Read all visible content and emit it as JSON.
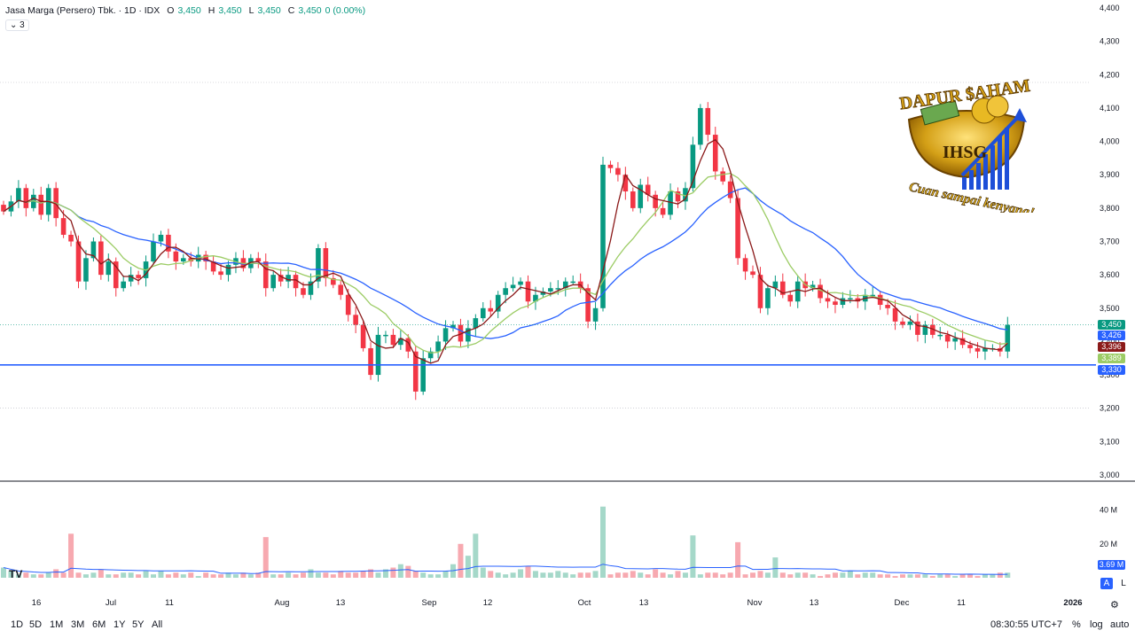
{
  "legend": {
    "symbol": "Jasa Marga (Persero) Tbk. · 1D · IDX",
    "o_label": "O",
    "o": "3,450",
    "h_label": "H",
    "h": "3,450",
    "l_label": "L",
    "l": "3,450",
    "c_label": "C",
    "c": "3,450",
    "change": "0 (0.00%)",
    "indicator_count": "3"
  },
  "price_axis_labels": [
    "4,400",
    "4,300",
    "4,200",
    "4,100",
    "4,000",
    "3,900",
    "3,800",
    "3,700",
    "3,600",
    "3,500",
    "3,400",
    "3,300",
    "3,200",
    "3,100",
    "3,000"
  ],
  "volume_axis_labels": [
    "40 M",
    "20 M"
  ],
  "time_axis_labels": [
    "16",
    "Jul",
    "11",
    "Aug",
    "13",
    "Sep",
    "12",
    "Oct",
    "13",
    "Nov",
    "13",
    "Dec",
    "11",
    "2026"
  ],
  "price_tags": [
    {
      "text": "3,450",
      "color": "#089981"
    },
    {
      "text": "3,426",
      "color": "#2962ff"
    },
    {
      "text": "3,396",
      "color": "#8b1a1a"
    },
    {
      "text": "3,389",
      "color": "#9ccc65"
    },
    {
      "text": "3,330",
      "color": "#2962ff"
    }
  ],
  "volume_tag": {
    "text": "3.69 M",
    "color": "#2962ff"
  },
  "ranges": [
    "1D",
    "5D",
    "1M",
    "3M",
    "6M",
    "1Y",
    "5Y",
    "All"
  ],
  "clock": "08:30:55 UTC+7",
  "controls": {
    "percent": "%",
    "log": "log",
    "auto": "auto",
    "a": "A",
    "l": "L"
  },
  "logo": {
    "top_text": "DAPUR $AHAM",
    "center_text": "IHSG",
    "bottom_text": "Cuan sampai kenyang!"
  },
  "tv_logo": "TV",
  "colors": {
    "up": "#089981",
    "down": "#f23645",
    "ma_blue": "#2962ff",
    "ma_dark": "#8b1a1a",
    "ma_green": "#9ccc65",
    "support": "#2962ff"
  },
  "chart_data": {
    "type": "candlestick",
    "title": "Jasa Marga (Persero) Tbk. · 1D · IDX",
    "ylim": [
      3000,
      4400
    ],
    "support_line": 3330,
    "close": [
      3790,
      3820,
      3860,
      3800,
      3840,
      3780,
      3860,
      3770,
      3720,
      3700,
      3580,
      3650,
      3700,
      3600,
      3640,
      3560,
      3580,
      3600,
      3590,
      3640,
      3700,
      3720,
      3670,
      3640,
      3650,
      3640,
      3660,
      3640,
      3610,
      3600,
      3630,
      3650,
      3620,
      3650,
      3640,
      3560,
      3600,
      3580,
      3600,
      3560,
      3540,
      3580,
      3680,
      3590,
      3570,
      3540,
      3480,
      3450,
      3380,
      3300,
      3420,
      3420,
      3390,
      3410,
      3370,
      3250,
      3350,
      3370,
      3400,
      3440,
      3450,
      3400,
      3440,
      3470,
      3500,
      3490,
      3540,
      3560,
      3570,
      3580,
      3520,
      3540,
      3550,
      3560,
      3560,
      3580,
      3580,
      3560,
      3460,
      3500,
      3930,
      3920,
      3900,
      3850,
      3800,
      3870,
      3840,
      3800,
      3780,
      3850,
      3820,
      3860,
      3990,
      4100,
      4020,
      3910,
      3880,
      3830,
      3650,
      3610,
      3600,
      3500,
      3560,
      3580,
      3540,
      3520,
      3580,
      3560,
      3570,
      3530,
      3520,
      3510,
      3530,
      3530,
      3520,
      3540,
      3540,
      3510,
      3500,
      3460,
      3450,
      3460,
      3420,
      3450,
      3420,
      3420,
      3400,
      3410,
      3390,
      3380,
      3370,
      3380,
      3380,
      3370,
      3450
    ],
    "ma_windows": [
      "blue (long)",
      "dark red (short)",
      "light green (medium)"
    ],
    "latest": {
      "close": 3450,
      "ma_blue": 3426,
      "ma_dark": 3396,
      "ma_green": 3389
    },
    "volume_unit": "M",
    "volume_ylim": [
      0,
      45
    ],
    "volume": [
      6,
      4,
      2,
      3,
      2,
      2,
      3,
      5,
      3,
      13,
      3,
      2,
      3,
      5,
      2,
      2,
      3,
      3,
      2,
      4,
      2,
      4,
      2,
      3,
      2,
      3,
      1,
      3,
      2,
      2,
      3,
      2,
      3,
      2,
      3,
      4,
      2,
      2,
      3,
      2,
      3,
      5,
      3,
      3,
      2,
      4,
      3,
      3,
      4,
      5,
      3,
      5,
      6,
      8,
      7,
      4,
      3,
      2,
      2,
      4,
      8,
      10,
      13,
      11,
      6,
      4,
      3,
      2,
      3,
      5,
      7,
      4,
      3,
      3,
      4,
      3,
      2,
      3,
      3,
      4,
      3,
      2,
      3,
      3,
      4,
      3,
      2,
      5,
      3,
      2,
      4,
      3,
      2,
      2,
      3,
      3,
      2,
      3,
      2,
      2,
      3,
      4,
      3,
      4,
      3,
      2,
      3,
      3,
      2,
      1,
      2,
      3,
      3,
      4,
      2,
      3,
      3,
      2,
      2,
      1,
      2,
      2,
      2,
      2,
      1,
      2,
      2,
      1,
      2,
      2,
      1,
      2,
      2,
      3,
      3
    ],
    "volume_big": {
      "80": 42,
      "92": 25,
      "98": 21,
      "103": 12,
      "35": 24,
      "63": 26,
      "61": 20,
      "9": 26
    }
  }
}
